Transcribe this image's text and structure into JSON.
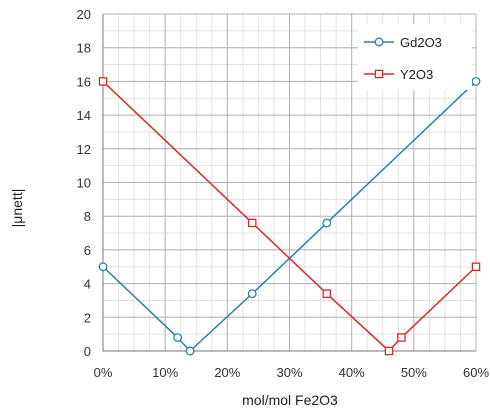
{
  "chart_data": {
    "type": "line",
    "xlabel": "mol/mol  Fe2O3",
    "ylabel": "|μnett|",
    "xlim": [
      0,
      60
    ],
    "ylim": [
      0,
      20
    ],
    "x_ticks": [
      0,
      10,
      20,
      30,
      40,
      50,
      60
    ],
    "x_tick_labels": [
      "0%",
      "10%",
      "20%",
      "30%",
      "40%",
      "50%",
      "60%"
    ],
    "y_ticks": [
      0,
      2,
      4,
      6,
      8,
      10,
      12,
      14,
      16,
      18,
      20
    ],
    "y_tick_labels": [
      "0",
      "2",
      "4",
      "6",
      "8",
      "10",
      "12",
      "14",
      "16",
      "18",
      "20"
    ],
    "x_minor_step": 2.5,
    "y_minor_step": 1,
    "grid": true,
    "legend_position": "top-right",
    "series": [
      {
        "name": "Gd2O3",
        "marker": "circle",
        "color": "#2e7fa6",
        "points": [
          {
            "x": 0,
            "y": 5
          },
          {
            "x": 12,
            "y": 0.8
          },
          {
            "x": 14,
            "y": 0
          },
          {
            "x": 24,
            "y": 3.4
          },
          {
            "x": 36,
            "y": 7.6
          },
          {
            "x": 60,
            "y": 16
          }
        ]
      },
      {
        "name": "Y2O3",
        "marker": "square",
        "color": "#d42a2a",
        "points": [
          {
            "x": 0,
            "y": 16
          },
          {
            "x": 24,
            "y": 7.6
          },
          {
            "x": 36,
            "y": 3.4
          },
          {
            "x": 46,
            "y": 0
          },
          {
            "x": 48,
            "y": 0.8
          },
          {
            "x": 60,
            "y": 5
          }
        ]
      }
    ]
  }
}
